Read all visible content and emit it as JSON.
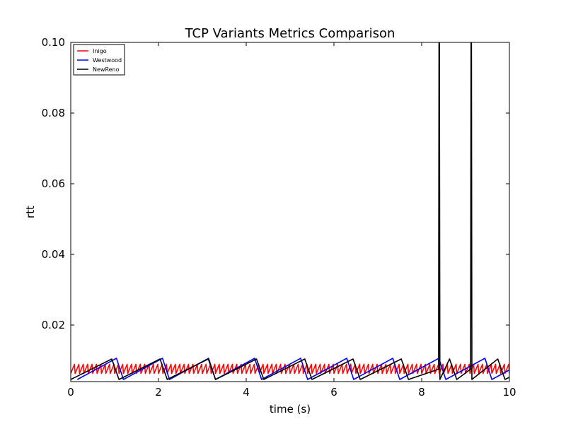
{
  "chart_data": {
    "type": "line",
    "title": "TCP Variants Metrics Comparison",
    "xlabel": "time (s)",
    "ylabel": "rtt",
    "xlim": [
      0,
      10
    ],
    "ylim": [
      0.004,
      0.1
    ],
    "x_ticks": [
      0,
      2,
      4,
      6,
      8,
      10
    ],
    "x_tick_labels": [
      "0",
      "2",
      "4",
      "6",
      "8",
      "10"
    ],
    "y_ticks": [
      0.02,
      0.04,
      0.06,
      0.08,
      0.1
    ],
    "y_tick_labels": [
      "0.02",
      "0.04",
      "0.06",
      "0.08",
      "0.10"
    ],
    "grid": false,
    "legend_position": "top-left",
    "series": [
      {
        "name": "Inigo",
        "color": "#ff0000",
        "pattern": "sawtooth",
        "period": 0.1,
        "low": 0.0063,
        "high": 0.0089,
        "start": 0.0,
        "end": 10.0
      },
      {
        "name": "Westwood",
        "color": "#0000ff",
        "pattern": "sawtooth",
        "period": 1.05,
        "low": 0.0046,
        "high": 0.0106,
        "start": 0.15,
        "end": 10.0
      },
      {
        "name": "NewReno",
        "color": "#000000",
        "pattern": "sawtooth",
        "period": 1.1,
        "low": 0.0046,
        "high": 0.0104,
        "start": 0.0,
        "end": 10.0,
        "spikes": [
          {
            "x": 8.4,
            "y": 0.1
          },
          {
            "x": 9.13,
            "y": 0.1
          }
        ]
      }
    ]
  }
}
